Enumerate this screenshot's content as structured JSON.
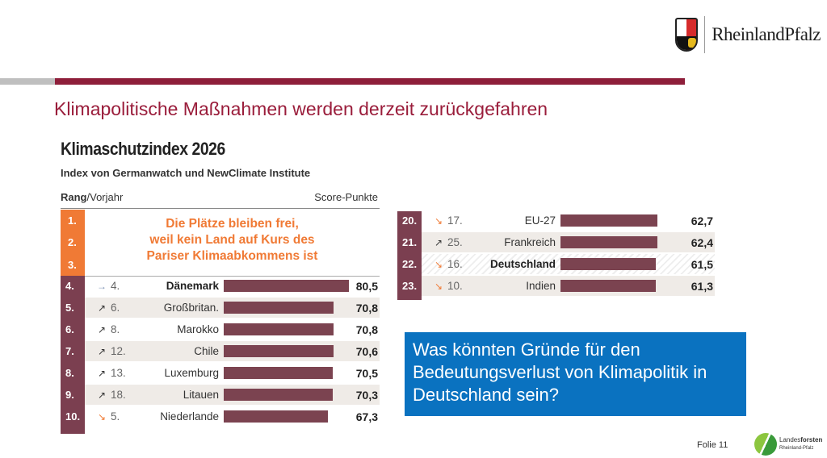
{
  "header": {
    "title": "Klimapolitische Maßnahmen werden derzeit zurückgefahren",
    "logo_text": "RheinlandPfalz"
  },
  "figure": {
    "title": "Klimaschutzindex 2026",
    "subtitle": "Index von Germanwatch und NewClimate Institute",
    "col_rank": "Rang",
    "col_prev": "/Vorjahr",
    "col_score": "Score-Punkte",
    "empty_ranks": [
      "1.",
      "2.",
      "3."
    ],
    "empty_text": [
      "Die Plätze bleiben frei,",
      "weil kein Land auf Kurs des",
      "Pariser Klimaabkommens ist"
    ],
    "rows_left": [
      {
        "rank": "4.",
        "trend": "same",
        "arrow": "→",
        "prev": "4.",
        "country": "Dänemark",
        "score": "80,5",
        "value": 80.5,
        "bold": true
      },
      {
        "rank": "5.",
        "trend": "up",
        "arrow": "↗",
        "prev": "6.",
        "country": "Großbritan.",
        "score": "70,8",
        "value": 70.8
      },
      {
        "rank": "6.",
        "trend": "up",
        "arrow": "↗",
        "prev": "8.",
        "country": "Marokko",
        "score": "70,8",
        "value": 70.8
      },
      {
        "rank": "7.",
        "trend": "up",
        "arrow": "↗",
        "prev": "12.",
        "country": "Chile",
        "score": "70,6",
        "value": 70.6
      },
      {
        "rank": "8.",
        "trend": "up",
        "arrow": "↗",
        "prev": "13.",
        "country": "Luxemburg",
        "score": "70,5",
        "value": 70.5
      },
      {
        "rank": "9.",
        "trend": "up",
        "arrow": "↗",
        "prev": "18.",
        "country": "Litauen",
        "score": "70,3",
        "value": 70.3
      },
      {
        "rank": "10.",
        "trend": "down",
        "arrow": "↘",
        "prev": "5.",
        "country": "Niederlande",
        "score": "67,3",
        "value": 67.3
      }
    ],
    "rows_right": [
      {
        "rank": "20.",
        "trend": "down",
        "arrow": "↘",
        "prev": "17.",
        "country": "EU-27",
        "score": "62,7",
        "value": 62.7
      },
      {
        "rank": "21.",
        "trend": "up",
        "arrow": "↗",
        "prev": "25.",
        "country": "Frankreich",
        "score": "62,4",
        "value": 62.4
      },
      {
        "rank": "22.",
        "trend": "down",
        "arrow": "↘",
        "prev": "16.",
        "country": "Deutschland",
        "score": "61,5",
        "value": 61.5,
        "bold": true
      },
      {
        "rank": "23.",
        "trend": "down",
        "arrow": "↘",
        "prev": "10.",
        "country": "Indien",
        "score": "61,3",
        "value": 61.3
      }
    ]
  },
  "question": "Was könnten Gründe für den Bedeutungsverlust von Klimapolitik in Deutschland sein?",
  "footer": {
    "slide": "Folie 11",
    "brand_a": "Landes",
    "brand_b": "forsten",
    "brand_sub": "Rheinland-Pfalz"
  },
  "colors": {
    "accent": "#8e1e3a",
    "bar": "#7b4350",
    "orange": "#f07a35",
    "box": "#0a72c0"
  }
}
